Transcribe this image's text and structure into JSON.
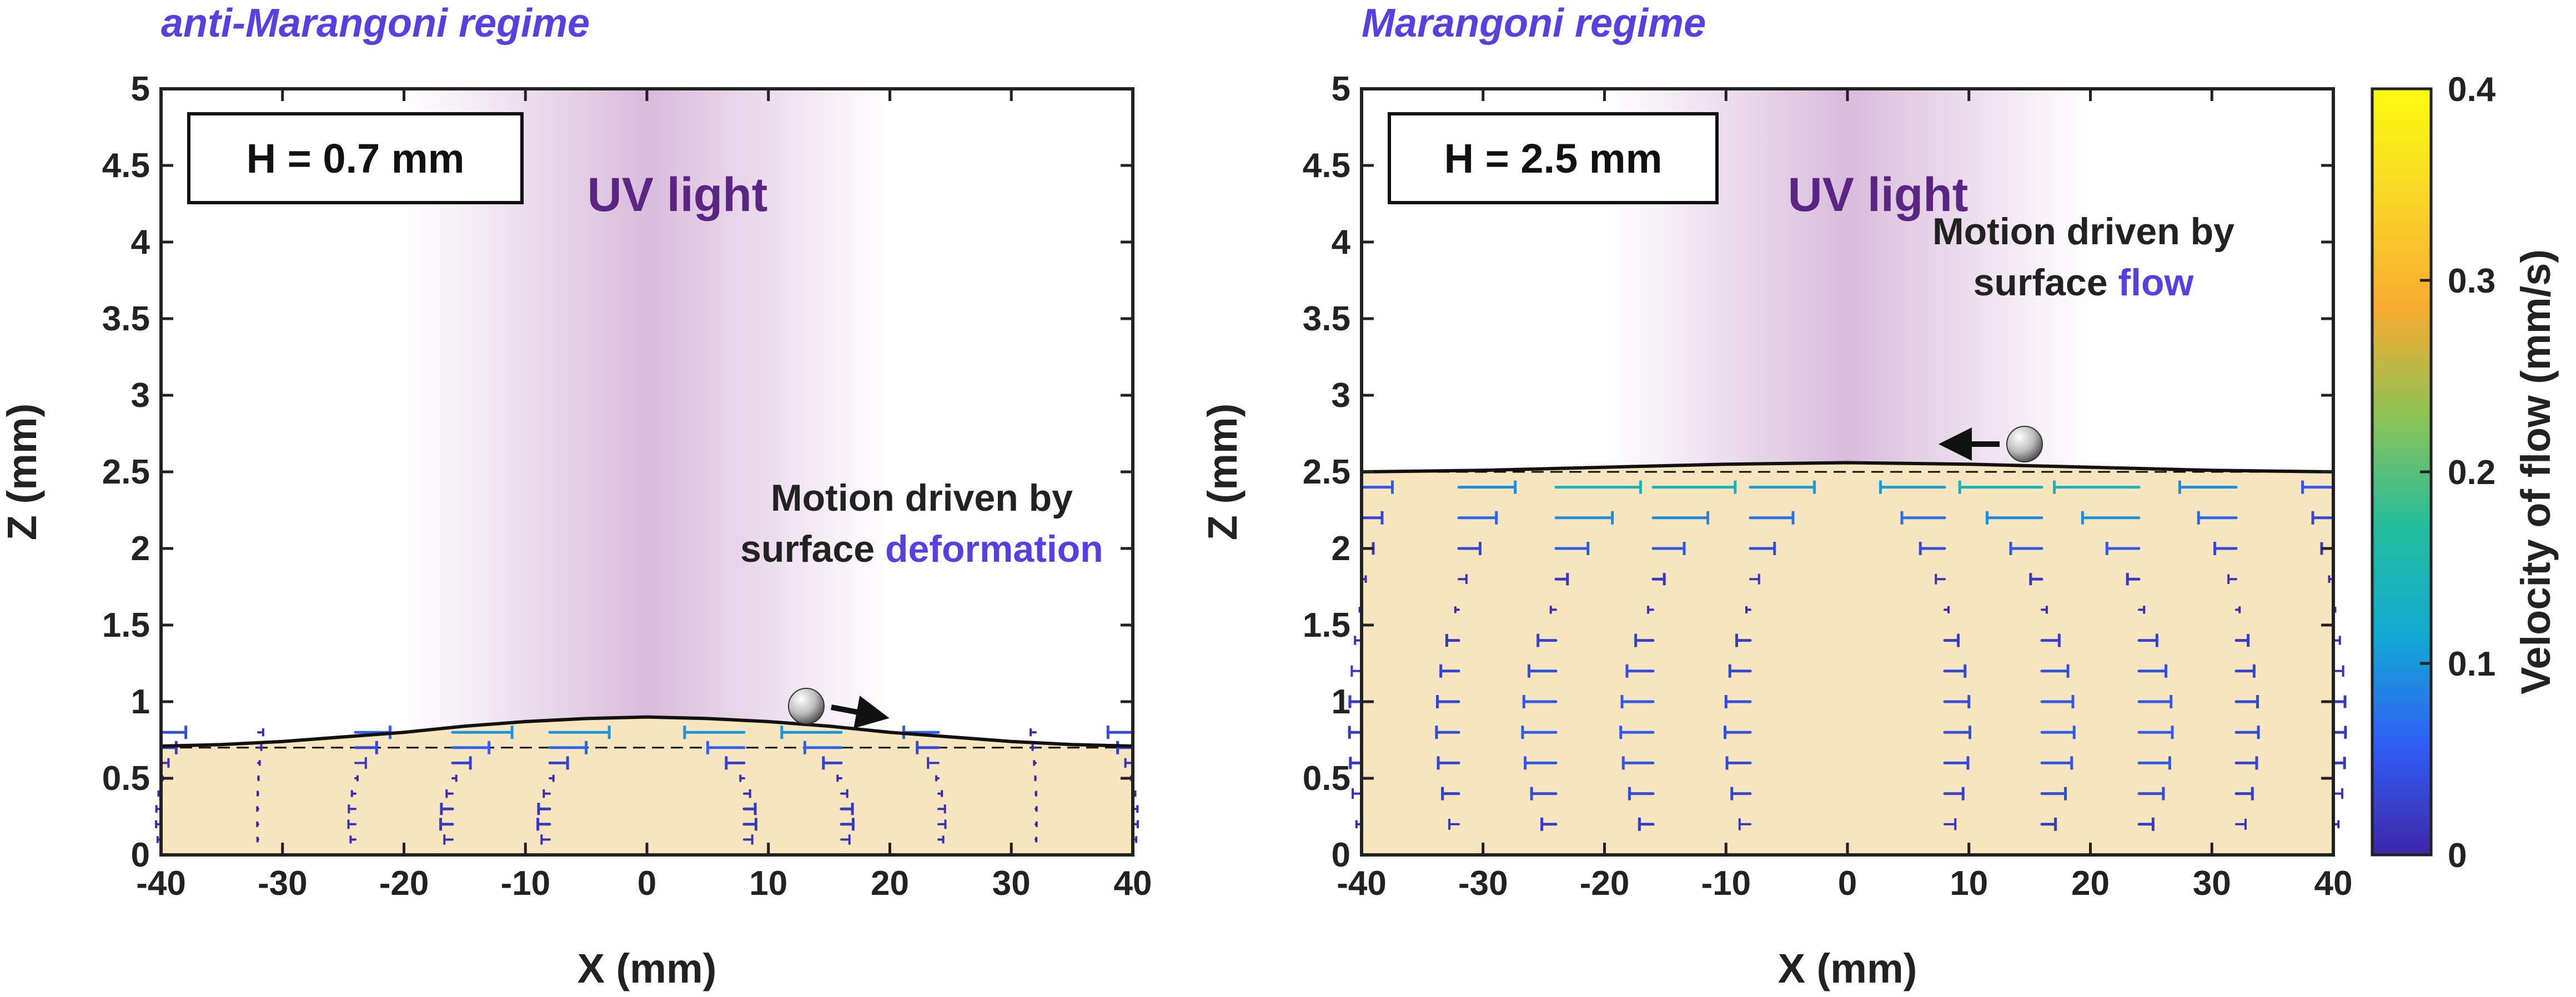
{
  "colors": {
    "regime_title": "#5a3fe0",
    "uv_text": "#5b2583",
    "uv_glow": "#b27ab8",
    "liquid": "#f7e6bd",
    "axis": "#222222",
    "highlight": "#5a3fe0",
    "colormap": [
      "#3e26a8",
      "#2f5ef5",
      "#13a9d3",
      "#23bd9c",
      "#8dc356",
      "#f7ab30",
      "#f9d628",
      "#f9fb0e"
    ]
  },
  "chart_data": [
    {
      "type": "quiver",
      "regime_title": "anti-Marangoni regime",
      "box_label": "H = 0.7 mm",
      "uv_label": "UV light",
      "annotation": {
        "line1": "Motion driven by",
        "line2_prefix": "surface ",
        "line2_highlight": "deformation",
        "direction": "right"
      },
      "particle": {
        "x": 13,
        "z": 0.9
      },
      "xlabel": "X (mm)",
      "ylabel": "Z (mm)",
      "xlim": [
        -40,
        40
      ],
      "ylim": [
        0,
        5
      ],
      "xticks": [
        "-40",
        "-30",
        "-20",
        "-10",
        "0",
        "10",
        "20",
        "30",
        "40"
      ],
      "yticks": [
        "0",
        "0.5",
        "1",
        "1.5",
        "2",
        "2.5",
        "3",
        "3.5",
        "4",
        "4.5",
        "5"
      ],
      "film_thickness_mm": 0.7,
      "surface_profile": {
        "x": [
          -40,
          -35,
          -30,
          -25,
          -20,
          -15,
          -10,
          -5,
          0,
          5,
          10,
          15,
          20,
          25,
          30,
          35,
          40
        ],
        "z": [
          0.71,
          0.72,
          0.74,
          0.77,
          0.8,
          0.84,
          0.87,
          0.89,
          0.9,
          0.89,
          0.87,
          0.84,
          0.8,
          0.77,
          0.74,
          0.72,
          0.71
        ]
      },
      "columns_x": [
        -40,
        -32,
        -24,
        -16,
        -8,
        8,
        16,
        24,
        32,
        40
      ],
      "rows_z": [
        0.1,
        0.2,
        0.3,
        0.4,
        0.5,
        0.6,
        0.7,
        0.8
      ],
      "surface_speed_mm_s": [
        0.05,
        0.01,
        0.07,
        0.12,
        0.12,
        -0.12,
        -0.12,
        -0.07,
        -0.01,
        -0.05
      ],
      "velocity_note": "u(z) = u_s (1.5 (z/h)^2 - (z/h)), small vectors"
    },
    {
      "type": "quiver",
      "regime_title": "Marangoni regime",
      "box_label": "H = 2.5 mm",
      "uv_label": "UV light",
      "annotation": {
        "line1": "Motion driven by",
        "line2_prefix": "surface ",
        "line2_highlight": "flow",
        "direction": "left"
      },
      "particle": {
        "x": 15,
        "z": 2.65
      },
      "xlabel": "X (mm)",
      "ylabel": "Z (mm)",
      "xlim": [
        -40,
        40
      ],
      "ylim": [
        0,
        5
      ],
      "xticks": [
        "-40",
        "-30",
        "-20",
        "-10",
        "0",
        "10",
        "20",
        "30",
        "40"
      ],
      "yticks": [
        "0",
        "0.5",
        "1",
        "1.5",
        "2",
        "2.5",
        "3",
        "3.5",
        "4",
        "4.5",
        "5"
      ],
      "film_thickness_mm": 2.5,
      "surface_profile": {
        "x": [
          -40,
          -30,
          -20,
          -10,
          0,
          10,
          20,
          30,
          40
        ],
        "z": [
          2.5,
          2.51,
          2.53,
          2.55,
          2.56,
          2.55,
          2.53,
          2.51,
          2.5
        ]
      },
      "columns_x": [
        -40,
        -32,
        -24,
        -16,
        -8,
        8,
        16,
        24,
        32,
        40
      ],
      "rows_z": [
        0.2,
        0.4,
        0.6,
        0.8,
        1.0,
        1.2,
        1.4,
        1.6,
        1.8,
        2.0,
        2.2,
        2.4
      ],
      "surface_speed_mm_s": [
        0.12,
        0.22,
        0.33,
        0.32,
        0.25,
        -0.25,
        -0.32,
        -0.33,
        -0.22,
        -0.12
      ],
      "velocity_note": "u(z) = u_s (1.5 (z/h)^2 - (z/h))"
    }
  ],
  "colorbar": {
    "label": "Velocity of flow (mm/s)",
    "range": [
      0,
      0.4
    ],
    "ticks": [
      "0",
      "0.1",
      "0.2",
      "0.3",
      "0.4"
    ]
  }
}
